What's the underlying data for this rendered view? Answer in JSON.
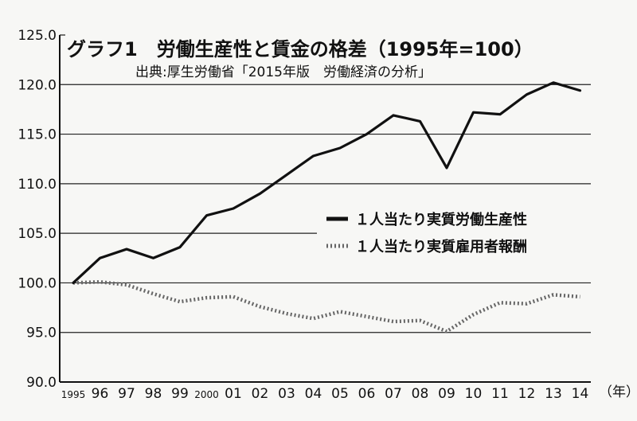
{
  "chart_data": {
    "type": "line",
    "title": "グラフ1　労働生産性と賃金の格差（1995年=100）",
    "subtitle": "出典:厚生労働省「2015年版　労働経済の分析」",
    "x_unit_label": "（年）",
    "categories": [
      "1995",
      "96",
      "97",
      "98",
      "99",
      "2000",
      "01",
      "02",
      "03",
      "04",
      "05",
      "06",
      "07",
      "08",
      "09",
      "10",
      "11",
      "12",
      "13",
      "14"
    ],
    "ylim": [
      90,
      125
    ],
    "yticks": [
      "90.0",
      "95.0",
      "100.0",
      "105.0",
      "110.0",
      "115.0",
      "120.0",
      "125.0"
    ],
    "grid": "horizontal",
    "legend_position": "center-right",
    "series": [
      {
        "name": "１人当たり実質労働生産性",
        "style": "solid",
        "color": "#111111",
        "values": [
          100.0,
          102.5,
          103.4,
          102.5,
          103.6,
          106.8,
          107.5,
          109.0,
          110.9,
          112.8,
          113.6,
          115.0,
          116.9,
          116.3,
          111.6,
          117.2,
          117.0,
          119.0,
          120.2,
          119.4
        ]
      },
      {
        "name": "１人当たり実質雇用者報酬",
        "style": "dotted",
        "color": "#666666",
        "values": [
          100.0,
          100.1,
          99.8,
          98.9,
          98.1,
          98.5,
          98.6,
          97.6,
          96.9,
          96.4,
          97.1,
          96.6,
          96.1,
          96.2,
          95.1,
          96.8,
          98.0,
          97.9,
          98.8,
          98.6
        ]
      }
    ]
  }
}
